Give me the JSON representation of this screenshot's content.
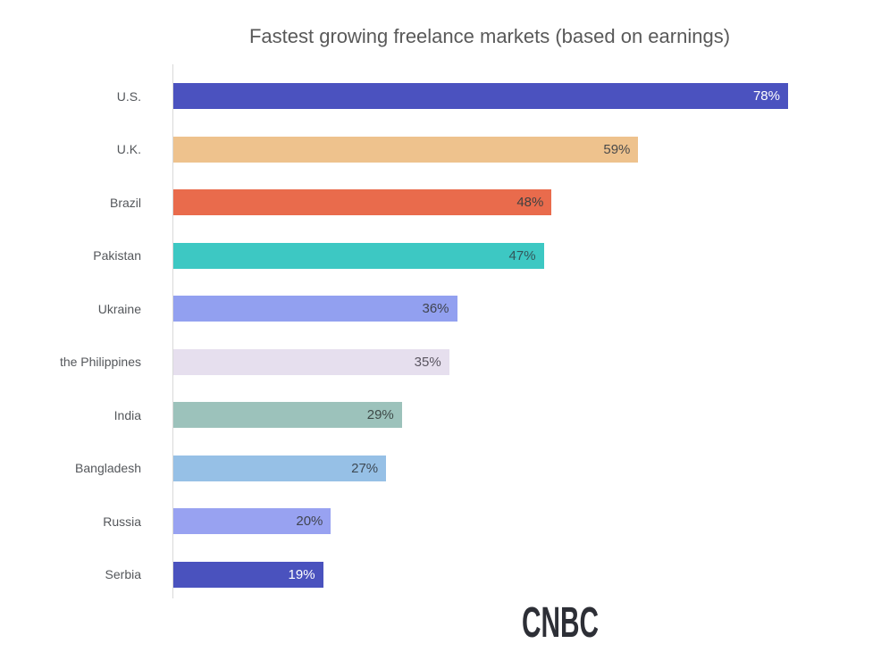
{
  "source": {
    "logo_text": "CNBC",
    "logo_color": "#2d2f36"
  },
  "layout_colors": {
    "background": "#ffffff",
    "axis_line": "#d8d8d8",
    "title_text": "#595959",
    "category_label_text": "#54575b",
    "value_label_dark": "#404040",
    "value_label_light": "#ffffff"
  },
  "chart_data": {
    "type": "bar",
    "orientation": "horizontal",
    "title": "Fastest growing freelance markets (based on earnings)",
    "xlabel": "",
    "ylabel": "",
    "xlim": [
      0,
      100
    ],
    "grid": false,
    "legend": false,
    "categories": [
      "U.S.",
      "U.K.",
      "Brazil",
      "Pakistan",
      "Ukraine",
      "the Philippines",
      "India",
      "Bangladesh",
      "Russia",
      "Serbia"
    ],
    "values": [
      78,
      59,
      48,
      47,
      36,
      35,
      29,
      27,
      20,
      19
    ],
    "value_labels": [
      "78%",
      "59%",
      "48%",
      "47%",
      "36%",
      "35%",
      "29%",
      "27%",
      "20%",
      "19%"
    ],
    "bar_colors": [
      "#4b52bf",
      "#eec28d",
      "#e96b4c",
      "#3dc8c3",
      "#92a0f0",
      "#e6dfee",
      "#9cc2bb",
      "#96c0e6",
      "#98a2f1",
      "#4a52be"
    ],
    "value_label_colors": [
      "#ffffff",
      "#4a4a4a",
      "#404040",
      "#33565a",
      "#40444f",
      "#5a5560",
      "#3e4a48",
      "#3e4a55",
      "#40444f",
      "#ffffff"
    ]
  }
}
